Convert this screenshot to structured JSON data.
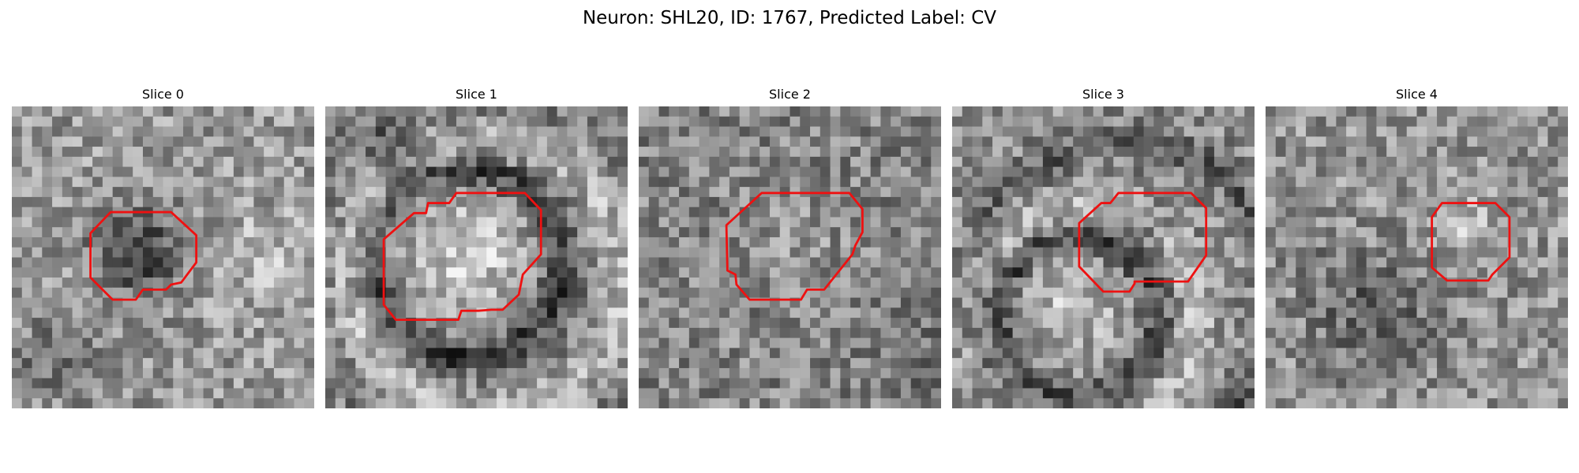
{
  "figure": {
    "title": "Neuron: SHL20, ID: 1767, Predicted Label: CV"
  },
  "image": {
    "colormap": "grayscale",
    "grid_size": 30,
    "contour_color": "#ee1111"
  },
  "slices": [
    {
      "title": "Slice 0"
    },
    {
      "title": "Slice 1"
    },
    {
      "title": "Slice 2"
    },
    {
      "title": "Slice 3"
    },
    {
      "title": "Slice 4"
    }
  ]
}
